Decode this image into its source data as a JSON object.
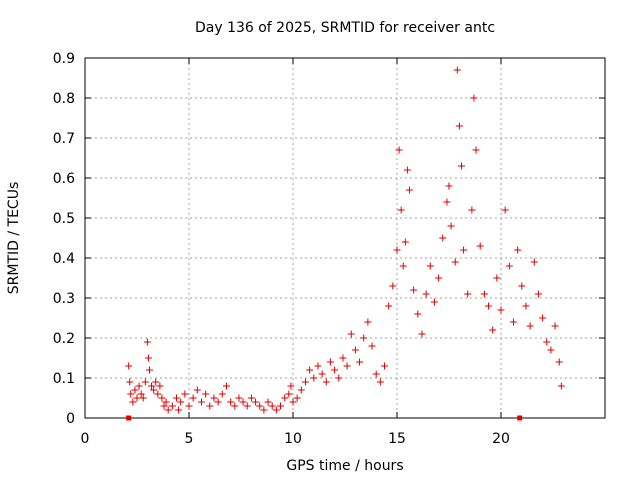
{
  "chart_data": {
    "type": "scatter",
    "title": "Day 136 of 2025, SRMTID for receiver antc",
    "xlabel": "GPS time / hours",
    "ylabel": "SRMTID / TECUs",
    "xlim": [
      0,
      25
    ],
    "ylim": [
      0,
      0.9
    ],
    "x_ticks": [
      0,
      5,
      10,
      15,
      20
    ],
    "y_ticks": [
      0,
      0.1,
      0.2,
      0.3,
      0.4,
      0.5,
      0.6,
      0.7,
      0.8,
      0.9
    ],
    "x_tick_labels": [
      "0",
      "5",
      "10",
      "15",
      "20"
    ],
    "y_tick_labels": [
      "0",
      "0.1",
      "0.2",
      "0.3",
      "0.4",
      "0.5",
      "0.6",
      "0.7",
      "0.8",
      "0.9"
    ],
    "grid": true,
    "marker": "+",
    "color": "#e00000",
    "series": [
      {
        "name": "SRMTID",
        "points": [
          [
            2.1,
            0.13
          ],
          [
            2.15,
            0.09
          ],
          [
            2.2,
            0.06
          ],
          [
            2.3,
            0.04
          ],
          [
            2.4,
            0.07
          ],
          [
            2.5,
            0.05
          ],
          [
            2.6,
            0.08
          ],
          [
            2.7,
            0.06
          ],
          [
            2.8,
            0.05
          ],
          [
            2.9,
            0.09
          ],
          [
            3.0,
            0.19
          ],
          [
            3.05,
            0.15
          ],
          [
            3.1,
            0.12
          ],
          [
            3.2,
            0.08
          ],
          [
            3.3,
            0.07
          ],
          [
            3.4,
            0.09
          ],
          [
            3.5,
            0.06
          ],
          [
            3.6,
            0.08
          ],
          [
            3.7,
            0.05
          ],
          [
            3.8,
            0.03
          ],
          [
            3.9,
            0.04
          ],
          [
            4.0,
            0.02
          ],
          [
            4.2,
            0.03
          ],
          [
            4.4,
            0.05
          ],
          [
            4.5,
            0.02
          ],
          [
            4.6,
            0.04
          ],
          [
            4.8,
            0.06
          ],
          [
            5.0,
            0.03
          ],
          [
            5.2,
            0.05
          ],
          [
            5.4,
            0.07
          ],
          [
            5.6,
            0.04
          ],
          [
            5.8,
            0.06
          ],
          [
            6.0,
            0.03
          ],
          [
            6.2,
            0.05
          ],
          [
            6.4,
            0.04
          ],
          [
            6.6,
            0.06
          ],
          [
            6.8,
            0.08
          ],
          [
            7.0,
            0.04
          ],
          [
            7.2,
            0.03
          ],
          [
            7.4,
            0.05
          ],
          [
            7.6,
            0.04
          ],
          [
            7.8,
            0.03
          ],
          [
            8.0,
            0.05
          ],
          [
            8.2,
            0.04
          ],
          [
            8.4,
            0.03
          ],
          [
            8.6,
            0.02
          ],
          [
            8.8,
            0.04
          ],
          [
            9.0,
            0.03
          ],
          [
            9.2,
            0.02
          ],
          [
            9.4,
            0.03
          ],
          [
            9.6,
            0.05
          ],
          [
            9.8,
            0.06
          ],
          [
            9.9,
            0.08
          ],
          [
            10.0,
            0.04
          ],
          [
            10.2,
            0.05
          ],
          [
            10.4,
            0.07
          ],
          [
            10.6,
            0.09
          ],
          [
            10.8,
            0.12
          ],
          [
            11.0,
            0.1
          ],
          [
            11.2,
            0.13
          ],
          [
            11.4,
            0.11
          ],
          [
            11.6,
            0.09
          ],
          [
            11.8,
            0.14
          ],
          [
            12.0,
            0.12
          ],
          [
            12.2,
            0.1
          ],
          [
            12.4,
            0.15
          ],
          [
            12.6,
            0.13
          ],
          [
            12.8,
            0.21
          ],
          [
            13.0,
            0.17
          ],
          [
            13.2,
            0.14
          ],
          [
            13.4,
            0.2
          ],
          [
            13.6,
            0.24
          ],
          [
            13.8,
            0.18
          ],
          [
            14.0,
            0.11
          ],
          [
            14.2,
            0.09
          ],
          [
            14.4,
            0.13
          ],
          [
            14.6,
            0.28
          ],
          [
            14.8,
            0.33
          ],
          [
            15.0,
            0.42
          ],
          [
            15.1,
            0.67
          ],
          [
            15.2,
            0.52
          ],
          [
            15.3,
            0.38
          ],
          [
            15.4,
            0.44
          ],
          [
            15.5,
            0.62
          ],
          [
            15.6,
            0.57
          ],
          [
            15.8,
            0.32
          ],
          [
            16.0,
            0.26
          ],
          [
            16.2,
            0.21
          ],
          [
            16.4,
            0.31
          ],
          [
            16.6,
            0.38
          ],
          [
            16.8,
            0.29
          ],
          [
            17.0,
            0.35
          ],
          [
            17.2,
            0.45
          ],
          [
            17.4,
            0.54
          ],
          [
            17.5,
            0.58
          ],
          [
            17.6,
            0.48
          ],
          [
            17.8,
            0.39
          ],
          [
            17.9,
            0.87
          ],
          [
            18.0,
            0.73
          ],
          [
            18.1,
            0.63
          ],
          [
            18.2,
            0.42
          ],
          [
            18.4,
            0.31
          ],
          [
            18.6,
            0.52
          ],
          [
            18.7,
            0.8
          ],
          [
            18.8,
            0.67
          ],
          [
            19.0,
            0.43
          ],
          [
            19.2,
            0.31
          ],
          [
            19.4,
            0.28
          ],
          [
            19.6,
            0.22
          ],
          [
            19.8,
            0.35
          ],
          [
            20.0,
            0.27
          ],
          [
            20.2,
            0.52
          ],
          [
            20.4,
            0.38
          ],
          [
            20.6,
            0.24
          ],
          [
            20.8,
            0.42
          ],
          [
            21.0,
            0.33
          ],
          [
            21.2,
            0.28
          ],
          [
            21.4,
            0.23
          ],
          [
            21.6,
            0.39
          ],
          [
            21.8,
            0.31
          ],
          [
            22.0,
            0.25
          ],
          [
            22.2,
            0.19
          ],
          [
            22.4,
            0.17
          ],
          [
            22.6,
            0.23
          ],
          [
            22.8,
            0.14
          ],
          [
            22.9,
            0.08
          ]
        ]
      }
    ],
    "markers_on_x_axis": [
      2.1,
      20.9
    ]
  }
}
